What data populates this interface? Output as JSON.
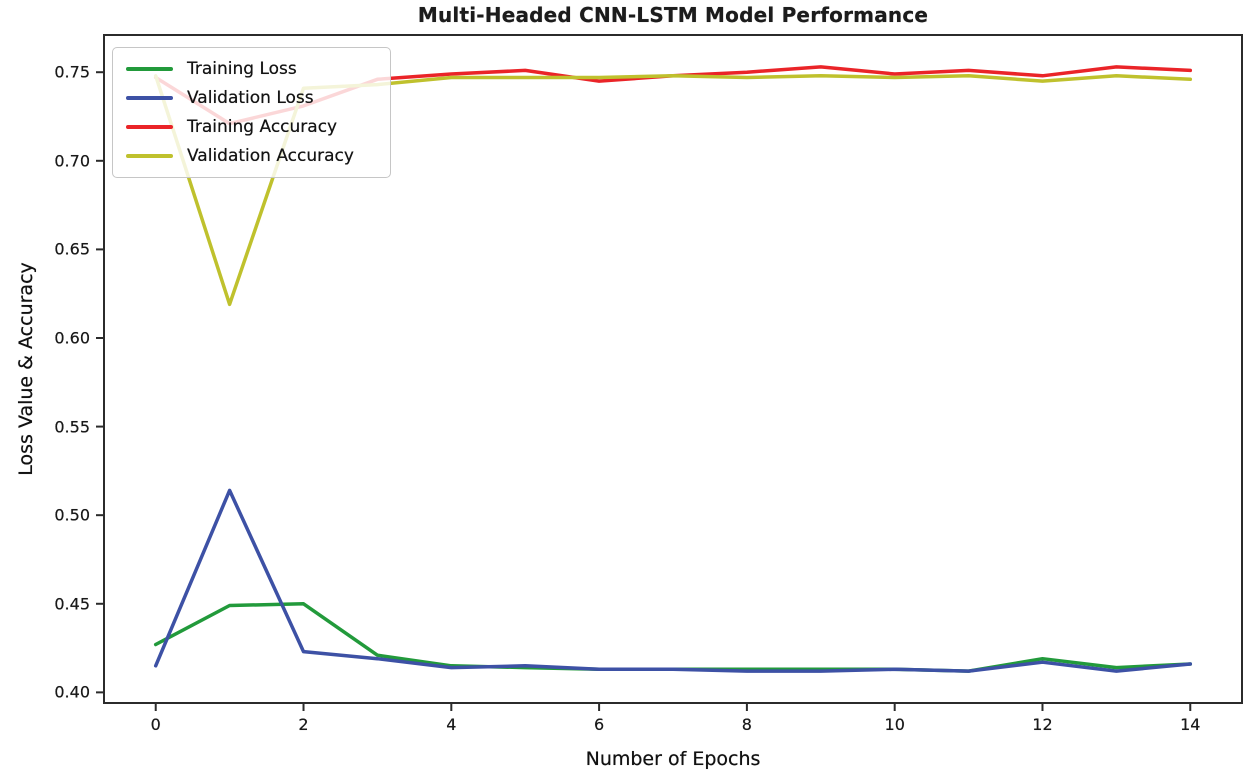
{
  "chart_data": {
    "type": "line",
    "title": "Multi-Headed CNN-LSTM Model Performance",
    "xlabel": "Number of Epochs",
    "ylabel": "Loss Value & Accuracy",
    "x": [
      0,
      1,
      2,
      3,
      4,
      5,
      6,
      7,
      8,
      9,
      10,
      11,
      12,
      13,
      14
    ],
    "series": [
      {
        "name": "Training Loss",
        "color": "#229a3b",
        "values": [
          0.427,
          0.449,
          0.45,
          0.421,
          0.415,
          0.414,
          0.413,
          0.413,
          0.413,
          0.413,
          0.413,
          0.412,
          0.419,
          0.414,
          0.416
        ]
      },
      {
        "name": "Validation Loss",
        "color": "#3d51a5",
        "values": [
          0.415,
          0.514,
          0.423,
          0.419,
          0.414,
          0.415,
          0.413,
          0.413,
          0.412,
          0.412,
          0.413,
          0.412,
          0.417,
          0.412,
          0.416
        ]
      },
      {
        "name": "Training Accuracy",
        "color": "#ea2428",
        "values": [
          0.747,
          0.721,
          0.731,
          0.746,
          0.749,
          0.751,
          0.745,
          0.748,
          0.75,
          0.753,
          0.749,
          0.751,
          0.748,
          0.753,
          0.751
        ]
      },
      {
        "name": "Validation Accuracy",
        "color": "#bfc12d",
        "values": [
          0.748,
          0.619,
          0.741,
          0.743,
          0.747,
          0.747,
          0.747,
          0.748,
          0.747,
          0.748,
          0.747,
          0.748,
          0.745,
          0.748,
          0.746
        ]
      }
    ],
    "xtick_labels": [
      "0",
      "2",
      "4",
      "6",
      "8",
      "10",
      "12",
      "14"
    ],
    "ytick_labels": [
      "0.40",
      "0.45",
      "0.50",
      "0.55",
      "0.60",
      "0.65",
      "0.70",
      "0.75"
    ],
    "xlim": [
      -0.7,
      14.7
    ],
    "ylim": [
      0.394,
      0.771
    ],
    "grid": false,
    "legend_position": "upper left"
  }
}
